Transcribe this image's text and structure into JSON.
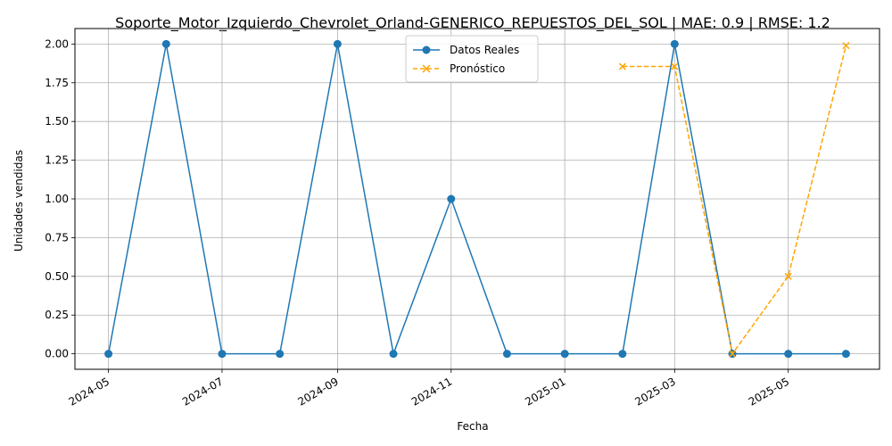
{
  "chart_data": {
    "type": "line",
    "title": "Soporte_Motor_Izquierdo_Chevrolet_Orland-GENERICO_REPUESTOS_DEL_SOL | MAE: 0.9 | RMSE: 1.2",
    "xlabel": "Fecha",
    "ylabel": "Unidades vendidas",
    "grid": true,
    "legend_position": "top-center",
    "x_ticks": [
      "2024-05-01",
      "2024-07-01",
      "2024-09-01",
      "2024-11-01",
      "2025-01-01",
      "2025-03-01",
      "2025-05-01"
    ],
    "x_tick_labels": [
      "2024-05",
      "2024-07",
      "2024-09",
      "2024-11",
      "2025-01",
      "2025-03",
      "2025-05"
    ],
    "xlim": [
      "2024-04-13",
      "2025-06-19"
    ],
    "ylim": [
      -0.1,
      2.1
    ],
    "y_ticks": [
      0.0,
      0.25,
      0.5,
      0.75,
      1.0,
      1.25,
      1.5,
      1.75,
      2.0
    ],
    "y_tick_labels": [
      "0.00",
      "0.25",
      "0.50",
      "0.75",
      "1.00",
      "1.25",
      "1.50",
      "1.75",
      "2.00"
    ],
    "series": [
      {
        "name": "Datos Reales",
        "color": "#1f77b4",
        "marker": "circle",
        "line_style": "solid",
        "x": [
          "2024-05-01",
          "2024-06-01",
          "2024-07-01",
          "2024-08-01",
          "2024-09-01",
          "2024-10-01",
          "2024-11-01",
          "2024-12-01",
          "2025-01-01",
          "2025-02-01",
          "2025-03-01",
          "2025-04-01",
          "2025-05-01",
          "2025-06-01"
        ],
        "values": [
          0,
          2,
          0,
          0,
          2,
          0,
          1,
          0,
          0,
          0,
          2,
          0,
          0,
          0
        ]
      },
      {
        "name": "Pronóstico",
        "color": "#ffa500",
        "marker": "x",
        "line_style": "dashed",
        "x": [
          "2025-02-01",
          "2025-03-01",
          "2025-04-01",
          "2025-05-01",
          "2025-06-01"
        ],
        "values": [
          1.855,
          1.855,
          0.0,
          0.5,
          1.99
        ]
      }
    ]
  }
}
